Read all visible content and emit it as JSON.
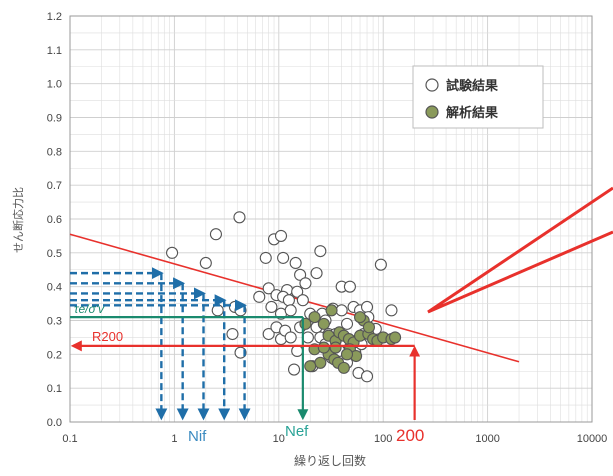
{
  "chart_data": {
    "type": "scatter",
    "xscale": "log",
    "xlim": [
      0.1,
      10000
    ],
    "ylim": [
      0,
      1.2
    ],
    "xlabel": "繰り返し回数",
    "ylabel": "せん断応力比",
    "xticks": [
      {
        "value": 0.1,
        "label": "0.1"
      },
      {
        "value": 1,
        "label": "1"
      },
      {
        "value": 10,
        "label": "10"
      },
      {
        "value": 100,
        "label": "100"
      },
      {
        "value": 1000,
        "label": "1000"
      },
      {
        "value": 10000,
        "label": "10000"
      }
    ],
    "yticks": [
      {
        "value": 0.0,
        "label": "0.0"
      },
      {
        "value": 0.1,
        "label": "0.1"
      },
      {
        "value": 0.2,
        "label": "0.2"
      },
      {
        "value": 0.3,
        "label": "0.3"
      },
      {
        "value": 0.4,
        "label": "0.4"
      },
      {
        "value": 0.5,
        "label": "0.5"
      },
      {
        "value": 0.6,
        "label": "0.6"
      },
      {
        "value": 0.7,
        "label": "0.7"
      },
      {
        "value": 0.8,
        "label": "0.8"
      },
      {
        "value": 0.9,
        "label": "0.9"
      },
      {
        "value": 1.0,
        "label": "1.0"
      },
      {
        "value": 1.1,
        "label": "1.1"
      },
      {
        "value": 1.2,
        "label": "1.2"
      }
    ],
    "grid": true,
    "legend_position": "top-right",
    "series": [
      {
        "name": "試験結果",
        "marker": "open-circle",
        "color": "#ffffff",
        "edge": "#555555",
        "points": [
          [
            0.95,
            0.5
          ],
          [
            2.0,
            0.47
          ],
          [
            2.5,
            0.555
          ],
          [
            4.2,
            0.605
          ],
          [
            7.5,
            0.485
          ],
          [
            8.0,
            0.395
          ],
          [
            9.0,
            0.54
          ],
          [
            11.0,
            0.485
          ],
          [
            10.5,
            0.55
          ],
          [
            14.5,
            0.47
          ],
          [
            16.0,
            0.435
          ],
          [
            18.0,
            0.41
          ],
          [
            25.0,
            0.505
          ],
          [
            23.0,
            0.44
          ],
          [
            40.0,
            0.4
          ],
          [
            48.0,
            0.4
          ],
          [
            95.0,
            0.465
          ],
          [
            6.5,
            0.37
          ],
          [
            8.5,
            0.34
          ],
          [
            9.5,
            0.375
          ],
          [
            10.5,
            0.32
          ],
          [
            12.0,
            0.39
          ],
          [
            11.0,
            0.37
          ],
          [
            12.5,
            0.36
          ],
          [
            13.0,
            0.33
          ],
          [
            15.0,
            0.385
          ],
          [
            17.0,
            0.36
          ],
          [
            20.0,
            0.32
          ],
          [
            26.0,
            0.32
          ],
          [
            28.0,
            0.3
          ],
          [
            33.0,
            0.335
          ],
          [
            40.0,
            0.33
          ],
          [
            52.0,
            0.34
          ],
          [
            60.0,
            0.33
          ],
          [
            70.0,
            0.34
          ],
          [
            3.8,
            0.34
          ],
          [
            4.3,
            0.33
          ],
          [
            2.6,
            0.33
          ],
          [
            3.6,
            0.26
          ],
          [
            4.3,
            0.205
          ],
          [
            8.0,
            0.26
          ],
          [
            9.5,
            0.28
          ],
          [
            10.5,
            0.245
          ],
          [
            11.5,
            0.27
          ],
          [
            13.0,
            0.25
          ],
          [
            15.0,
            0.21
          ],
          [
            16.0,
            0.28
          ],
          [
            19.0,
            0.25
          ],
          [
            23.0,
            0.28
          ],
          [
            25.0,
            0.25
          ],
          [
            30.0,
            0.26
          ],
          [
            35.0,
            0.26
          ],
          [
            45.0,
            0.29
          ],
          [
            55.0,
            0.24
          ],
          [
            65.0,
            0.26
          ],
          [
            72.0,
            0.31
          ],
          [
            85.0,
            0.275
          ],
          [
            120.0,
            0.33
          ],
          [
            28.0,
            0.23
          ],
          [
            38.0,
            0.21
          ],
          [
            45.0,
            0.175
          ],
          [
            58.0,
            0.145
          ],
          [
            70.0,
            0.135
          ],
          [
            14.0,
            0.155
          ],
          [
            21.0,
            0.165
          ],
          [
            32.0,
            0.19
          ],
          [
            48.0,
            0.22
          ],
          [
            54.0,
            0.205
          ],
          [
            62.0,
            0.23
          ]
        ]
      },
      {
        "name": "解析結果",
        "marker": "filled-circle",
        "color": "#8a9a5b",
        "edge": "#555555",
        "points": [
          [
            18.0,
            0.29
          ],
          [
            22.0,
            0.31
          ],
          [
            27.0,
            0.29
          ],
          [
            30.0,
            0.255
          ],
          [
            35.0,
            0.24
          ],
          [
            38.0,
            0.265
          ],
          [
            42.0,
            0.255
          ],
          [
            47.0,
            0.245
          ],
          [
            52.0,
            0.235
          ],
          [
            60.0,
            0.255
          ],
          [
            65.0,
            0.3
          ],
          [
            72.0,
            0.26
          ],
          [
            80.0,
            0.245
          ],
          [
            88.0,
            0.24
          ],
          [
            100.0,
            0.25
          ],
          [
            120.0,
            0.245
          ],
          [
            130.0,
            0.25
          ],
          [
            25.0,
            0.175
          ],
          [
            30.0,
            0.2
          ],
          [
            34.0,
            0.185
          ],
          [
            37.0,
            0.175
          ],
          [
            42.0,
            0.16
          ],
          [
            48.0,
            0.215
          ],
          [
            55.0,
            0.195
          ],
          [
            20.0,
            0.165
          ],
          [
            22.0,
            0.215
          ],
          [
            27.0,
            0.22
          ],
          [
            35.0,
            0.22
          ],
          [
            45.0,
            0.2
          ],
          [
            60.0,
            0.31
          ],
          [
            73.0,
            0.28
          ],
          [
            32.0,
            0.33
          ]
        ]
      }
    ],
    "fit_line": {
      "x": [
        0.1,
        2000
      ],
      "y": [
        0.555,
        0.178
      ],
      "color": "#e8312c"
    },
    "annotations": {
      "nif_label": "Nif",
      "nef_label": "Nef",
      "tau_label": "τe/σ'v",
      "r200_label": "R200",
      "n200_label": "200",
      "tau_value": 0.31,
      "r200_value": 0.225,
      "n200_value": 200,
      "nef_value": 17,
      "nif_levels": [
        {
          "y": 0.44,
          "x": 0.75
        },
        {
          "y": 0.41,
          "x": 1.2
        },
        {
          "y": 0.38,
          "x": 1.9
        },
        {
          "y": 0.36,
          "x": 3.0
        },
        {
          "y": 0.345,
          "x": 4.7
        }
      ]
    },
    "colors": {
      "grid": "#dedede",
      "axis": "#9a9a9a",
      "tick_text": "#444444",
      "red": "#e8312c",
      "blue": "#1f6ea8",
      "green": "#1a8a6e",
      "nif_text": "#3a8ac0",
      "nef_text": "#2aa397"
    }
  }
}
